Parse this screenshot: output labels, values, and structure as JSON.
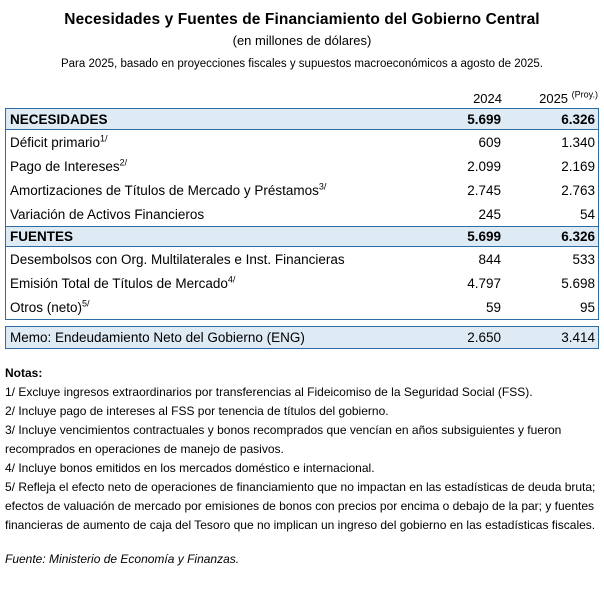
{
  "page": {
    "title": "Necesidades y Fuentes de Financiamiento del Gobierno Central",
    "subtitle": "(en millones de dólares)",
    "projection_note": "Para 2025, basado en proyecciones fiscales y supuestos macroeconómicos a agosto de 2025."
  },
  "table": {
    "col_2024": "2024",
    "col_2025": "2025",
    "col_2025_sup": "(Proy.)",
    "rows": [
      {
        "label": "NECESIDADES",
        "sup": "",
        "y2024": "5.699",
        "y2025": "6.326"
      },
      {
        "label": "Déficit primario",
        "sup": "1/",
        "y2024": "609",
        "y2025": "1.340"
      },
      {
        "label": "Pago de Intereses",
        "sup": "2/",
        "y2024": "2.099",
        "y2025": "2.169"
      },
      {
        "label": "Amortizaciones de Títulos de Mercado y Préstamos",
        "sup": "3/",
        "y2024": "2.745",
        "y2025": "2.763"
      },
      {
        "label": "Variación de Activos Financieros",
        "sup": "",
        "y2024": "245",
        "y2025": "54"
      },
      {
        "label": "FUENTES",
        "sup": "",
        "y2024": "5.699",
        "y2025": "6.326"
      },
      {
        "label": "Desembolsos con Org. Multilaterales e Inst. Financieras",
        "sup": "",
        "y2024": "844",
        "y2025": "533"
      },
      {
        "label": "Emisión Total de Títulos de Mercado",
        "sup": "4/",
        "y2024": "4.797",
        "y2025": "5.698"
      },
      {
        "label": "Otros (neto)",
        "sup": "5/",
        "y2024": "59",
        "y2025": "95"
      }
    ],
    "memo": {
      "label": "Memo: Endeudamiento Neto del Gobierno (ENG)",
      "y2024": "2.650",
      "y2025": "3.414"
    }
  },
  "notes": {
    "heading": "Notas:",
    "items": [
      "1/ Excluye ingresos extraordinarios por transferencias al Fideicomiso de la Seguridad Social (FSS).",
      "2/ Incluye pago de intereses al FSS por tenencia de títulos del gobierno.",
      "3/ Incluye vencimientos contractuales y bonos recomprados que vencían en años subsiguientes y fueron recomprados en operaciones de manejo de pasivos.",
      "4/ Incluye bonos emitidos en los mercados doméstico e internacional.",
      "5/ Refleja el efecto neto de operaciones de financiamiento que no impactan en las estadísticas de deuda bruta; efectos de valuación de mercado por emisiones de bonos con precios por encima o debajo de la par; y fuentes financieras de aumento de caja del Tesoro que no implican un ingreso del gobierno en las estadísticas fiscales."
    ]
  },
  "source": "Fuente: Ministerio de Economía y Finanzas.",
  "colors": {
    "band_fill": "#deeaf4",
    "border_blue": "#2e6da4",
    "text": "#000000"
  }
}
